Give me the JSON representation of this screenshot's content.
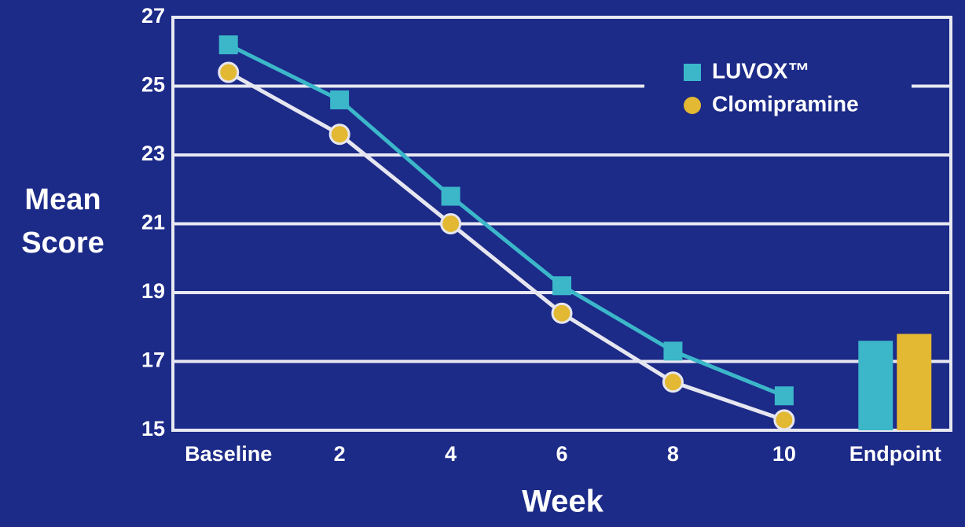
{
  "chart_data": {
    "type": "line_bar",
    "ylabel": [
      "Mean",
      "Score"
    ],
    "xlabel": "Week",
    "categories": [
      "Baseline",
      "2",
      "4",
      "6",
      "8",
      "10",
      "Endpoint"
    ],
    "series": [
      {
        "name": "LUVOX™",
        "color": "#3bb7c9",
        "line_color": "#3bb7c9",
        "marker": "square",
        "values": [
          26.2,
          24.6,
          21.8,
          19.2,
          17.3,
          16.0,
          17.6
        ]
      },
      {
        "name": "Clomipramine",
        "color": "#e3b832",
        "line_color": "#e6e6f0",
        "marker": "circle",
        "values": [
          25.4,
          23.6,
          21.0,
          18.4,
          16.4,
          15.3,
          17.8
        ]
      }
    ],
    "ylim": [
      15,
      27
    ],
    "yticks": [
      15,
      17,
      19,
      21,
      23,
      25,
      27
    ],
    "grid": true,
    "legend": "upper right"
  }
}
